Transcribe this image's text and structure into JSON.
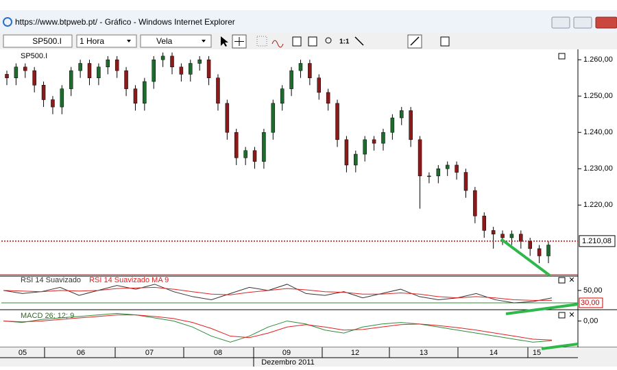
{
  "window": {
    "title": "https://www.btpweb.pt/ - Gráfico - Windows Internet Explorer"
  },
  "toolbar": {
    "symbol": "SP500.I",
    "interval": "1 Hora",
    "style": "Vela",
    "zoom": "1:1"
  },
  "x_axis": {
    "labels": [
      "05",
      "06",
      "07",
      "08",
      "09",
      "12",
      "13",
      "14",
      "15"
    ],
    "month_label": "Dezembro 2011"
  },
  "chart_data": [
    {
      "type": "candlestick",
      "title": "SP500.I",
      "up_color": "#1e6b2e",
      "down_color": "#8b1a1a",
      "open": [
        1256,
        1255,
        1258,
        1257,
        1253,
        1249,
        1247,
        1252,
        1257,
        1259,
        1255,
        1258,
        1260,
        1257,
        1252,
        1248,
        1254,
        1260,
        1261,
        1258,
        1256,
        1259,
        1260,
        1255,
        1248,
        1240,
        1233,
        1235,
        1232,
        1240,
        1248,
        1252,
        1257,
        1259,
        1255,
        1251,
        1248,
        1238,
        1231,
        1234,
        1238,
        1237,
        1240,
        1244,
        1246,
        1238,
        1228,
        1228,
        1230,
        1231,
        1229,
        1224,
        1217,
        1213,
        1212,
        1211,
        1212,
        1210,
        1208,
        1206
      ],
      "high": [
        1257,
        1259,
        1259,
        1258,
        1254,
        1250,
        1253,
        1258,
        1260,
        1260,
        1259,
        1261,
        1261,
        1258,
        1253,
        1255,
        1261,
        1262,
        1262,
        1259,
        1260,
        1261,
        1261,
        1256,
        1249,
        1241,
        1236,
        1236,
        1241,
        1249,
        1253,
        1258,
        1260,
        1260,
        1256,
        1252,
        1249,
        1239,
        1235,
        1239,
        1239,
        1241,
        1245,
        1247,
        1247,
        1239,
        1229,
        1231,
        1232,
        1232,
        1230,
        1225,
        1218,
        1214,
        1213,
        1213,
        1213,
        1211,
        1209,
        1210
      ],
      "low": [
        1253,
        1253,
        1255,
        1251,
        1247,
        1245,
        1245,
        1250,
        1255,
        1253,
        1253,
        1256,
        1255,
        1250,
        1246,
        1246,
        1252,
        1258,
        1256,
        1254,
        1254,
        1257,
        1253,
        1246,
        1238,
        1231,
        1231,
        1230,
        1230,
        1238,
        1246,
        1250,
        1255,
        1253,
        1249,
        1246,
        1236,
        1229,
        1229,
        1232,
        1235,
        1235,
        1238,
        1242,
        1236,
        1219,
        1226,
        1226,
        1228,
        1227,
        1222,
        1215,
        1211,
        1208,
        1209,
        1209,
        1208,
        1206,
        1204,
        1204
      ],
      "close": [
        1255,
        1258,
        1257,
        1253,
        1249,
        1247,
        1252,
        1257,
        1259,
        1255,
        1258,
        1260,
        1257,
        1252,
        1248,
        1254,
        1260,
        1261,
        1258,
        1256,
        1259,
        1260,
        1255,
        1248,
        1240,
        1233,
        1235,
        1232,
        1240,
        1248,
        1252,
        1257,
        1259,
        1255,
        1251,
        1248,
        1238,
        1231,
        1234,
        1238,
        1237,
        1240,
        1244,
        1246,
        1238,
        1228,
        1228,
        1230,
        1231,
        1229,
        1224,
        1217,
        1213,
        1212,
        1211,
        1212,
        1210,
        1208,
        1206,
        1209
      ],
      "ylim": [
        1201,
        1262.3
      ],
      "yticks": [
        {
          "value": 1260,
          "label": "1.260,00"
        },
        {
          "value": 1250,
          "label": "1.250,00"
        },
        {
          "value": 1240,
          "label": "1.240,00"
        },
        {
          "value": 1230,
          "label": "1.230,00"
        },
        {
          "value": 1220,
          "label": "1.220,00"
        }
      ],
      "last_price": {
        "value": 1210.08,
        "label": "1.210,08"
      }
    },
    {
      "type": "line",
      "ylim": [
        20,
        72
      ],
      "yticks": [
        {
          "value": 50,
          "label": "50,00"
        }
      ],
      "reference": {
        "value": 30,
        "label": "30,00"
      },
      "series": [
        {
          "name": "RSI 14 Suavizado",
          "color": "#333333",
          "values": [
            50,
            45,
            48,
            55,
            42,
            50,
            58,
            52,
            60,
            48,
            40,
            35,
            45,
            55,
            50,
            60,
            45,
            42,
            48,
            38,
            45,
            52,
            40,
            35,
            38,
            45,
            35,
            30,
            32,
            38
          ]
        },
        {
          "name": "RSI 14 Suavizado MA 9",
          "color": "#e02020",
          "values": [
            50,
            49,
            48,
            50,
            49,
            50,
            53,
            54,
            55,
            52,
            48,
            44,
            43,
            47,
            50,
            53,
            51,
            48,
            47,
            44,
            44,
            46,
            44,
            40,
            38,
            40,
            38,
            35,
            34,
            34
          ]
        }
      ]
    },
    {
      "type": "line",
      "ylim": [
        -8.5,
        3.5
      ],
      "yticks": [
        {
          "value": 0,
          "label": "0,00"
        }
      ],
      "legend": "MACD 26; 12; 9",
      "series": [
        {
          "color": "#2e8b3a",
          "values": [
            0,
            -0.5,
            0.5,
            1,
            1.5,
            2,
            2.5,
            2,
            1,
            0,
            -2,
            -5,
            -7,
            -5,
            -2,
            0,
            -1,
            -3,
            -4,
            -2,
            -1,
            -0.5,
            -1,
            -2,
            -3,
            -4,
            -5,
            -6,
            -7,
            -6.5
          ]
        },
        {
          "color": "#e02020",
          "values": [
            0,
            -0.3,
            0,
            0.5,
            1,
            1.5,
            2,
            2,
            1.5,
            0.8,
            -0.5,
            -2.5,
            -5,
            -5.5,
            -4,
            -2,
            -1.2,
            -2,
            -3,
            -2.8,
            -2,
            -1.2,
            -1,
            -1.5,
            -2.2,
            -3,
            -4,
            -5,
            -6,
            -6.3
          ]
        }
      ]
    }
  ]
}
